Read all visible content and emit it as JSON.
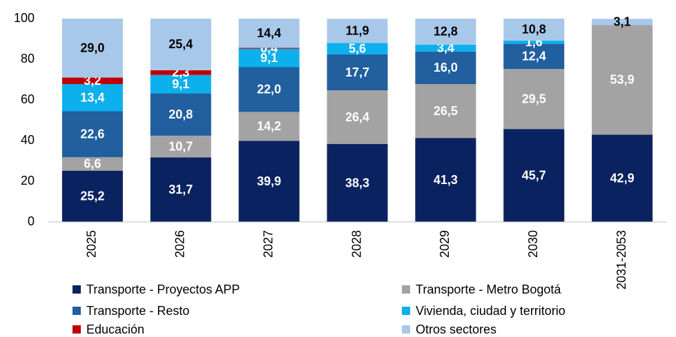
{
  "chart_data": {
    "type": "stacked_bar",
    "categories": [
      "2025",
      "2026",
      "2027",
      "2028",
      "2029",
      "2030",
      "2031-2053"
    ],
    "series": [
      {
        "name": "Transporte - Proyectos APP",
        "color": "#0b2260",
        "label_color": "#ffffff",
        "values": [
          25.2,
          31.7,
          39.9,
          38.3,
          41.3,
          45.7,
          42.9
        ],
        "value_labels": [
          "25,2",
          "31,7",
          "39,9",
          "38,3",
          "41,3",
          "45,7",
          "42,9"
        ]
      },
      {
        "name": "Transporte - Metro Bogotá",
        "color": "#a3a3a3",
        "label_color": "#ffffff",
        "values": [
          6.6,
          10.7,
          14.2,
          26.4,
          26.5,
          29.5,
          53.9
        ],
        "value_labels": [
          "6,6",
          "10,7",
          "14,2",
          "26,4",
          "26,5",
          "29,5",
          "53,9"
        ]
      },
      {
        "name": "Transporte - Resto",
        "color": "#215f9f",
        "label_color": "#ffffff",
        "values": [
          22.6,
          20.8,
          22.0,
          17.7,
          16.0,
          12.4,
          null
        ],
        "value_labels": [
          "22,6",
          "20,8",
          "22,0",
          "17,7",
          "16,0",
          "12,4",
          null
        ]
      },
      {
        "name": "Vivienda, ciudad y territorio",
        "color": "#0cb0ec",
        "label_color": "#ffffff",
        "values": [
          13.4,
          9.1,
          9.1,
          5.6,
          3.4,
          1.6,
          null
        ],
        "value_labels": [
          "13,4",
          "9,1",
          "9,1",
          "5,6",
          "3,4",
          "1,6",
          null
        ]
      },
      {
        "name": "Educación",
        "color": "#c00000",
        "label_color": "#ffffff",
        "values": [
          3.2,
          2.3,
          0.4,
          null,
          null,
          null,
          null
        ],
        "value_labels": [
          "3,2",
          "2,3",
          "0,4",
          null,
          null,
          null,
          null
        ]
      },
      {
        "name": "Otros sectores",
        "color": "#a8c8ea",
        "label_color": "#000000",
        "values": [
          29.0,
          25.4,
          14.4,
          11.9,
          12.8,
          10.8,
          3.1
        ],
        "value_labels": [
          "29,0",
          "25,4",
          "14,4",
          "11,9",
          "12,8",
          "10,8",
          "3,1"
        ]
      }
    ],
    "ylim": [
      0,
      100
    ],
    "yticks": [
      0,
      20,
      40,
      60,
      80,
      100
    ],
    "grid": false,
    "legend": "bottom"
  }
}
